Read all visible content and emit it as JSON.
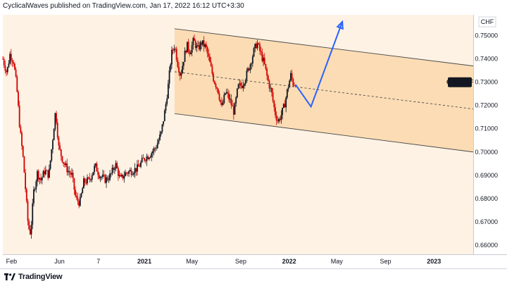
{
  "header": {
    "text": "CyclicalWaves published on TradingView.com, Jan 17, 2022 16:12 UTC+3:30"
  },
  "footer": {
    "brand": "TradingView"
  },
  "colors": {
    "background": "#ffffff",
    "plot_bg": "#fdf2e4",
    "channel_fill": "#fbdcb4",
    "candle_down": "#d50000",
    "candle_up": "#131722",
    "channel_line": "#4a4a4a",
    "projection": "#2962ff",
    "badge_bg": "#131722",
    "badge_text": "#ffffff"
  },
  "chart_data": {
    "type": "candlestick",
    "symbol": "CADCHF",
    "currency_label": "CHF",
    "y_ticks": [
      "0.75000",
      "0.74000",
      "0.73000",
      "0.72000",
      "0.71000",
      "0.70000",
      "0.69000",
      "0.68000",
      "0.67000",
      "0.66000"
    ],
    "y_tick_values": [
      0.75,
      0.74,
      0.73,
      0.72,
      0.71,
      0.7,
      0.69,
      0.68,
      0.67,
      0.66
    ],
    "ylim": [
      0.656,
      0.759
    ],
    "x_ticks": [
      {
        "label": "Feb",
        "date": "2020-02-01",
        "bold": false
      },
      {
        "label": "Jun",
        "date": "2020-06-01",
        "bold": false
      },
      {
        "label": "7",
        "date": "2020-09-07",
        "bold": false
      },
      {
        "label": "2021",
        "date": "2021-01-01",
        "bold": true
      },
      {
        "label": "May",
        "date": "2021-05-01",
        "bold": false
      },
      {
        "label": "Sep",
        "date": "2021-09-01",
        "bold": false
      },
      {
        "label": "2022",
        "date": "2022-01-01",
        "bold": true
      },
      {
        "label": "May",
        "date": "2022-05-01",
        "bold": false
      },
      {
        "label": "Sep",
        "date": "2022-09-01",
        "bold": false
      },
      {
        "label": "2023",
        "date": "2023-01-01",
        "bold": true
      }
    ],
    "xlim": [
      "2020-01-10",
      "2023-04-10"
    ],
    "last_price_label": "CADCHF",
    "last_price": 0.73,
    "price_path": [
      [
        "2020-01-10",
        0.74
      ],
      [
        "2020-01-20",
        0.734
      ],
      [
        "2020-01-28",
        0.742
      ],
      [
        "2020-02-06",
        0.739
      ],
      [
        "2020-02-14",
        0.728
      ],
      [
        "2020-02-22",
        0.71
      ],
      [
        "2020-03-02",
        0.696
      ],
      [
        "2020-03-08",
        0.682
      ],
      [
        "2020-03-14",
        0.668
      ],
      [
        "2020-03-20",
        0.665
      ],
      [
        "2020-03-28",
        0.683
      ],
      [
        "2020-04-06",
        0.691
      ],
      [
        "2020-04-15",
        0.688
      ],
      [
        "2020-04-25",
        0.692
      ],
      [
        "2020-05-05",
        0.69
      ],
      [
        "2020-05-15",
        0.706
      ],
      [
        "2020-05-22",
        0.718
      ],
      [
        "2020-05-30",
        0.702
      ],
      [
        "2020-06-10",
        0.696
      ],
      [
        "2020-06-22",
        0.692
      ],
      [
        "2020-07-02",
        0.69
      ],
      [
        "2020-07-12",
        0.68
      ],
      [
        "2020-07-22",
        0.678
      ],
      [
        "2020-08-01",
        0.687
      ],
      [
        "2020-08-15",
        0.688
      ],
      [
        "2020-08-30",
        0.694
      ],
      [
        "2020-09-10",
        0.69
      ],
      [
        "2020-09-25",
        0.688
      ],
      [
        "2020-10-08",
        0.69
      ],
      [
        "2020-10-20",
        0.695
      ],
      [
        "2020-11-01",
        0.688
      ],
      [
        "2020-11-15",
        0.691
      ],
      [
        "2020-12-01",
        0.692
      ],
      [
        "2020-12-15",
        0.693
      ],
      [
        "2020-12-30",
        0.697
      ],
      [
        "2021-01-15",
        0.699
      ],
      [
        "2021-01-30",
        0.702
      ],
      [
        "2021-02-12",
        0.708
      ],
      [
        "2021-02-22",
        0.718
      ],
      [
        "2021-03-03",
        0.73
      ],
      [
        "2021-03-10",
        0.742
      ],
      [
        "2021-03-18",
        0.746
      ],
      [
        "2021-03-26",
        0.738
      ],
      [
        "2021-04-02",
        0.733
      ],
      [
        "2021-04-10",
        0.74
      ],
      [
        "2021-04-18",
        0.746
      ],
      [
        "2021-04-26",
        0.743
      ],
      [
        "2021-05-05",
        0.748
      ],
      [
        "2021-05-15",
        0.744
      ],
      [
        "2021-05-25",
        0.747
      ],
      [
        "2021-06-05",
        0.745
      ],
      [
        "2021-06-15",
        0.738
      ],
      [
        "2021-06-25",
        0.731
      ],
      [
        "2021-07-05",
        0.727
      ],
      [
        "2021-07-15",
        0.719
      ],
      [
        "2021-07-25",
        0.726
      ],
      [
        "2021-08-05",
        0.722
      ],
      [
        "2021-08-15",
        0.717
      ],
      [
        "2021-08-25",
        0.728
      ],
      [
        "2021-09-05",
        0.729
      ],
      [
        "2021-09-15",
        0.733
      ],
      [
        "2021-09-25",
        0.738
      ],
      [
        "2021-10-05",
        0.744
      ],
      [
        "2021-10-12",
        0.747
      ],
      [
        "2021-10-20",
        0.743
      ],
      [
        "2021-10-30",
        0.738
      ],
      [
        "2021-11-08",
        0.731
      ],
      [
        "2021-11-18",
        0.725
      ],
      [
        "2021-11-26",
        0.717
      ],
      [
        "2021-12-04",
        0.713
      ],
      [
        "2021-12-12",
        0.716
      ],
      [
        "2021-12-20",
        0.72
      ],
      [
        "2021-12-28",
        0.727
      ],
      [
        "2022-01-05",
        0.733
      ],
      [
        "2022-01-12",
        0.729
      ],
      [
        "2022-01-17",
        0.73
      ]
    ],
    "channel": {
      "upper": [
        [
          "2021-03-18",
          0.753
        ],
        [
          "2023-04-10",
          0.737
        ]
      ],
      "middle": [
        [
          "2021-03-18",
          0.7345
        ],
        [
          "2023-04-10",
          0.7185
        ]
      ],
      "lower": [
        [
          "2021-03-18",
          0.7165
        ],
        [
          "2023-04-10",
          0.7
        ]
      ]
    },
    "projection": [
      [
        "2022-01-17",
        0.729
      ],
      [
        "2022-02-25",
        0.7195
      ],
      [
        "2022-05-15",
        0.756
      ]
    ]
  }
}
